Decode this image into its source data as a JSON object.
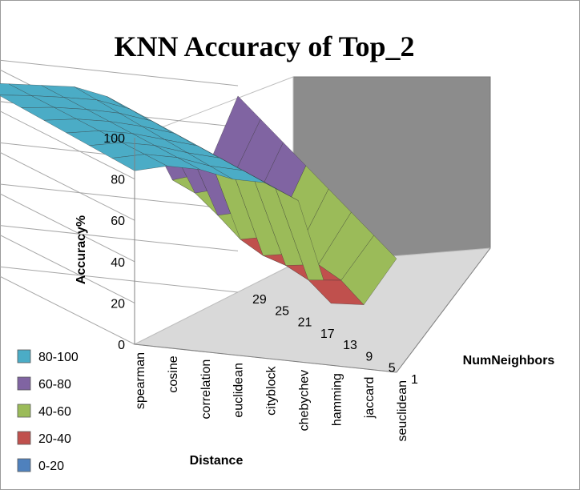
{
  "chart_data": {
    "type": "surface",
    "title": "KNN Accuracy of Top_2",
    "xlabel": "Distance",
    "ylabel": "Accuracy%",
    "zlabel": "NumNeighbors",
    "categories": [
      "spearman",
      "cosine",
      "correlation",
      "euclidean",
      "cityblock",
      "chebychev",
      "hamming",
      "jaccard",
      "seuclidean"
    ],
    "depth_ticks": [
      "1",
      "5",
      "9",
      "13",
      "17",
      "21",
      "25",
      "29"
    ],
    "ylim": [
      0,
      100
    ],
    "yticks": [
      "0",
      "20",
      "40",
      "60",
      "80",
      "100"
    ],
    "legend": [
      {
        "label": "80-100",
        "color": "#4bacc6"
      },
      {
        "label": "60-80",
        "color": "#8064a2"
      },
      {
        "label": "40-60",
        "color": "#9bbb59"
      },
      {
        "label": "20-40",
        "color": "#c0504d"
      },
      {
        "label": "0-20",
        "color": "#4f81bd"
      }
    ],
    "grid": true,
    "legend_position": "bottom-left",
    "near_series": [
      84,
      88,
      88,
      85,
      85,
      78,
      30,
      31,
      55
    ],
    "far_series": [
      88,
      89,
      90,
      91,
      88,
      80,
      50,
      55,
      95
    ]
  }
}
